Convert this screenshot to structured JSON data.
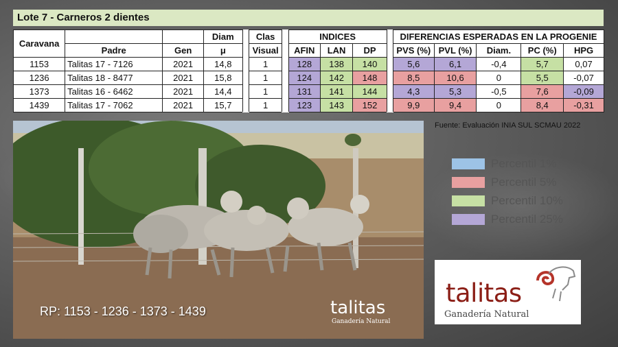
{
  "title": "Lote 7 - Carneros 2 dientes",
  "table": {
    "group_headers": {
      "indices": "INDICES",
      "diferencias": "DIFERENCIAS ESPERADAS EN LA PROGENIE"
    },
    "headers": {
      "caravana": "Caravana",
      "padre": "Padre",
      "gen": "Gen",
      "diam_top": "Diam",
      "diam_bottom": "μ",
      "clas_top": "Clas",
      "clas_bottom": "Visual",
      "afin": "AFIN",
      "lan": "LAN",
      "dp": "DP",
      "pvs": "PVS (%)",
      "pvl": "PVL (%)",
      "diam_dep": "Diam.",
      "pc": "PC (%)",
      "hpg": "HPG"
    },
    "rows": [
      {
        "caravana": "1153",
        "padre": "Talitas 17 - 7126",
        "gen": "2021",
        "diam": "14,8",
        "clas": "1",
        "afin": "128",
        "lan": "138",
        "dp": "140",
        "pvs": "5,6",
        "pvl": "6,1",
        "diam_dep": "-0,4",
        "pc": "5,7",
        "hpg": "0,07"
      },
      {
        "caravana": "1236",
        "padre": "Talitas 18 - 8477",
        "gen": "2021",
        "diam": "15,8",
        "clas": "1",
        "afin": "124",
        "lan": "142",
        "dp": "148",
        "pvs": "8,5",
        "pvl": "10,6",
        "diam_dep": "0",
        "pc": "5,5",
        "hpg": "-0,07"
      },
      {
        "caravana": "1373",
        "padre": "Talitas 16 - 6462",
        "gen": "2021",
        "diam": "14,4",
        "clas": "1",
        "afin": "131",
        "lan": "141",
        "dp": "144",
        "pvs": "4,3",
        "pvl": "5,3",
        "diam_dep": "-0,5",
        "pc": "7,6",
        "hpg": "-0,09"
      },
      {
        "caravana": "1439",
        "padre": "Talitas 17 - 7062",
        "gen": "2021",
        "diam": "15,7",
        "clas": "1",
        "afin": "123",
        "lan": "143",
        "dp": "152",
        "pvs": "9,9",
        "pvl": "9,4",
        "diam_dep": "0",
        "pc": "8,4",
        "hpg": "-0,31"
      }
    ]
  },
  "source": "Fuente: Evaluación INIA SUL SCMAU 2022",
  "legend": [
    {
      "label": "Percentil 1%",
      "color": "#9dc3e6"
    },
    {
      "label": "Percentil 5%",
      "color": "#e8a0a0"
    },
    {
      "label": "Percentil 10%",
      "color": "#c6e0a4"
    },
    {
      "label": "Percentil 25%",
      "color": "#b4a7d6"
    }
  ],
  "photo": {
    "caption": "RP: 1153 - 1236 - 1373 - 1439",
    "watermark_brand": "talitas",
    "watermark_sub": "Ganadería Natural"
  },
  "logo": {
    "brand": "talitas",
    "tagline": "Ganadería Natural"
  }
}
